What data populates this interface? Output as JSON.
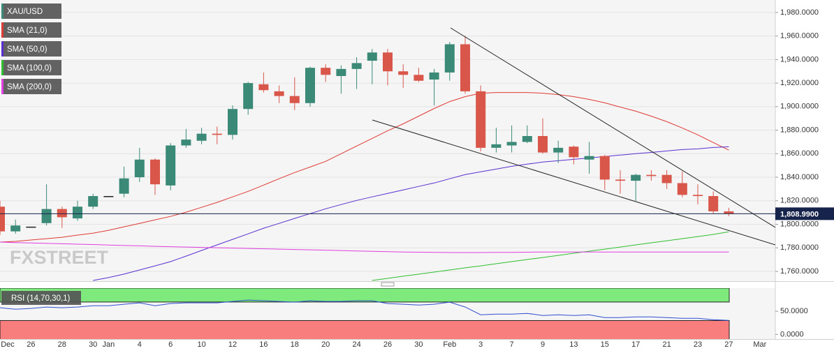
{
  "chart_data": [
    {
      "type": "candlestick",
      "name": "XAU/USD",
      "watermark": "FXSTREET",
      "categories": [
        "Dec",
        null,
        "26",
        null,
        "28",
        null,
        "30",
        "Jan",
        null,
        "4",
        null,
        "6",
        null,
        "10",
        null,
        "12",
        null,
        "16",
        null,
        "18",
        null,
        "20",
        null,
        "24",
        null,
        "26",
        null,
        "30",
        null,
        "Feb",
        null,
        "3",
        null,
        "7",
        null,
        "9",
        null,
        "13",
        null,
        "15",
        null,
        "17",
        null,
        "21",
        null,
        "23",
        null,
        "27",
        null,
        "Mar"
      ],
      "open": [
        1815,
        1794,
        1798,
        1801,
        1813,
        1805,
        1815,
        1824,
        1826,
        1840,
        1855,
        1833,
        1867,
        1871,
        1877,
        1876,
        1898,
        1919,
        1913,
        1909,
        1903,
        1933,
        1926,
        1932,
        1939,
        1946,
        1930,
        1927,
        1923,
        1929,
        1953,
        1913,
        1865,
        1867,
        1870,
        1875,
        1861,
        1866,
        1855,
        1858,
        1838,
        1837,
        1842,
        1842,
        1835,
        1825,
        1824,
        1811,
        null,
        null
      ],
      "high": [
        1820,
        1804,
        1798,
        1834,
        1815,
        1820,
        1826,
        1824,
        1849,
        1865,
        1856,
        1869,
        1881,
        1882,
        1883,
        1901,
        1921,
        1929,
        1918,
        1925,
        1934,
        1936,
        1935,
        1942,
        1949,
        1949,
        1936,
        1933,
        1932,
        1955,
        1960,
        1918,
        1882,
        1884,
        1884,
        1890,
        1871,
        1867,
        1870,
        1859,
        1846,
        1843,
        1846,
        1846,
        1845,
        1834,
        1828,
        1814,
        null,
        null
      ],
      "low": [
        1791,
        1792,
        1798,
        1799,
        1797,
        1803,
        1813,
        1824,
        1823,
        1836,
        1825,
        1829,
        1865,
        1868,
        1868,
        1872,
        1893,
        1912,
        1903,
        1897,
        1900,
        1921,
        1911,
        1915,
        1919,
        1918,
        1916,
        1921,
        1901,
        1922,
        1911,
        1862,
        1861,
        1861,
        1869,
        1860,
        1852,
        1851,
        1843,
        1829,
        1826,
        1820,
        1837,
        1830,
        1823,
        1817,
        1809,
        1807,
        null,
        null
      ],
      "close": [
        1794,
        1799,
        1798,
        1813,
        1806,
        1815,
        1824,
        1824,
        1839,
        1855,
        1834,
        1867,
        1872,
        1877,
        1876,
        1898,
        1920,
        1914,
        1909,
        1903,
        1933,
        1927,
        1932,
        1937,
        1946,
        1930,
        1927,
        1922,
        1929,
        1953,
        1913,
        1865,
        1868,
        1870,
        1875,
        1861,
        1865,
        1857,
        1858,
        1838,
        1837,
        1842,
        1841,
        1835,
        1825,
        1824,
        1811,
        1809,
        null,
        null
      ],
      "up_color": "#3b8a78",
      "down_color": "#d9574a",
      "flat_color": "#222222",
      "series": [
        {
          "name": "SMA (21,0)",
          "color": "#e03a34",
          "values": [
            1784.9,
            1785.5,
            1786.7,
            1787.8,
            1789.0,
            1790.8,
            1792.5,
            1794.9,
            1797.9,
            1800.8,
            1803.8,
            1806.7,
            1810.3,
            1814.4,
            1818.6,
            1823.3,
            1828.0,
            1833.3,
            1838.7,
            1844.0,
            1848.7,
            1853.5,
            1860.0,
            1866.5,
            1873.0,
            1879.5,
            1885.4,
            1891.9,
            1898.4,
            1904.3,
            1908.5,
            1911.4,
            1912.0,
            1912.0,
            1912.0,
            1911.4,
            1910.2,
            1908.5,
            1906.1,
            1903.2,
            1899.6,
            1896.1,
            1891.9,
            1887.2,
            1881.9,
            1876.0,
            1869.5,
            1863.0,
            null,
            null
          ]
        },
        {
          "name": "SMA (50,0)",
          "color": "#5a2fd0",
          "values": [
            null,
            null,
            null,
            null,
            null,
            null,
            1752.3,
            1754.7,
            1757.7,
            1761.2,
            1764.7,
            1768.3,
            1773.0,
            1777.8,
            1782.5,
            1787.2,
            1791.9,
            1796.7,
            1800.8,
            1805.0,
            1809.1,
            1813.2,
            1816.8,
            1820.3,
            1823.3,
            1826.2,
            1829.2,
            1832.2,
            1835.1,
            1838.7,
            1842.2,
            1844.6,
            1846.9,
            1849.3,
            1851.1,
            1852.9,
            1854.0,
            1855.2,
            1856.4,
            1857.6,
            1858.8,
            1860.0,
            1861.1,
            1862.3,
            1863.5,
            1864.1,
            1865.3,
            1865.9,
            null,
            null
          ]
        },
        {
          "name": "SMA (100,0)",
          "color": "#2fbf2f",
          "values": [
            null,
            null,
            null,
            null,
            null,
            null,
            null,
            null,
            null,
            null,
            null,
            null,
            null,
            null,
            null,
            null,
            null,
            null,
            null,
            null,
            null,
            null,
            null,
            null,
            1752.3,
            1754.1,
            1755.9,
            1757.6,
            1759.4,
            1761.2,
            1763.0,
            1764.7,
            1766.5,
            1768.3,
            1770.1,
            1771.8,
            1773.6,
            1775.4,
            1777.2,
            1778.9,
            1780.7,
            1782.5,
            1784.3,
            1786.0,
            1787.8,
            1789.6,
            1791.4,
            1793.7,
            null,
            null
          ]
        },
        {
          "name": "SMA (200,0)",
          "color": "#e03ee0",
          "values": [
            1784.9,
            1784.5,
            1784.2,
            1783.8,
            1783.5,
            1783.1,
            1782.8,
            1782.4,
            1782.0,
            1781.7,
            1781.3,
            1781.0,
            1780.7,
            1780.4,
            1780.1,
            1779.8,
            1779.5,
            1779.2,
            1778.9,
            1778.6,
            1778.3,
            1778.0,
            1777.7,
            1777.3,
            1777.0,
            1776.7,
            1776.5,
            1776.3,
            1776.1,
            1776.0,
            1776.0,
            1776.0,
            1776.1,
            1776.2,
            1776.3,
            1776.4,
            1776.4,
            1776.5,
            1776.5,
            1776.5,
            1776.5,
            1776.5,
            1776.5,
            1776.5,
            1776.5,
            1776.5,
            1776.5,
            1776.4,
            null,
            null
          ]
        }
      ],
      "ylim": [
        1751.7,
        1990.6
      ],
      "yticks": [
        {
          "value": 1760,
          "label": "1,760.0000"
        },
        {
          "value": 1780,
          "label": "1,780.0000"
        },
        {
          "value": 1800,
          "label": "1,800.0000"
        },
        {
          "value": 1820,
          "label": "1,820.0000"
        },
        {
          "value": 1840,
          "label": "1,840.0000"
        },
        {
          "value": 1860,
          "label": "1,860.0000"
        },
        {
          "value": 1880,
          "label": "1,880.0000"
        },
        {
          "value": 1900,
          "label": "1,900.0000"
        },
        {
          "value": 1920,
          "label": "1,920.0000"
        },
        {
          "value": 1940,
          "label": "1,940.0000"
        },
        {
          "value": 1960,
          "label": "1,960.0000"
        },
        {
          "value": 1980,
          "label": "1,980.0000"
        }
      ],
      "grid": true,
      "last_price": {
        "value": 1808.99,
        "label": "1,808.9900"
      },
      "last_price_color": "#16234a"
    },
    {
      "type": "line",
      "title": "RSI (14,70,30,1)",
      "color": "#2f4fd0",
      "values": [
        57.6,
        54.5,
        56.1,
        59.1,
        57.6,
        59.1,
        62.1,
        62.1,
        65.2,
        68.2,
        62.1,
        66.7,
        68.2,
        68.2,
        68.2,
        71.2,
        74.2,
        72.7,
        71.2,
        69.7,
        72.7,
        71.2,
        71.2,
        72.7,
        72.7,
        66.7,
        65.2,
        63.6,
        65.2,
        69.7,
        59.1,
        42.4,
        43.9,
        43.9,
        45.5,
        40.9,
        42.4,
        40.9,
        42.4,
        36.4,
        36.4,
        37.9,
        37.9,
        36.4,
        34.8,
        34.8,
        31.8,
        30.3,
        null,
        null
      ],
      "ylim": [
        -10,
        100
      ],
      "yticks": [
        {
          "value": 0,
          "label": "0.0000"
        },
        {
          "value": 50,
          "label": "50.0000"
        }
      ],
      "grid": false,
      "overbought": 70,
      "oversold": 30,
      "overbought_color": "#7eea7e",
      "oversold_color": "#f87d7d"
    }
  ]
}
